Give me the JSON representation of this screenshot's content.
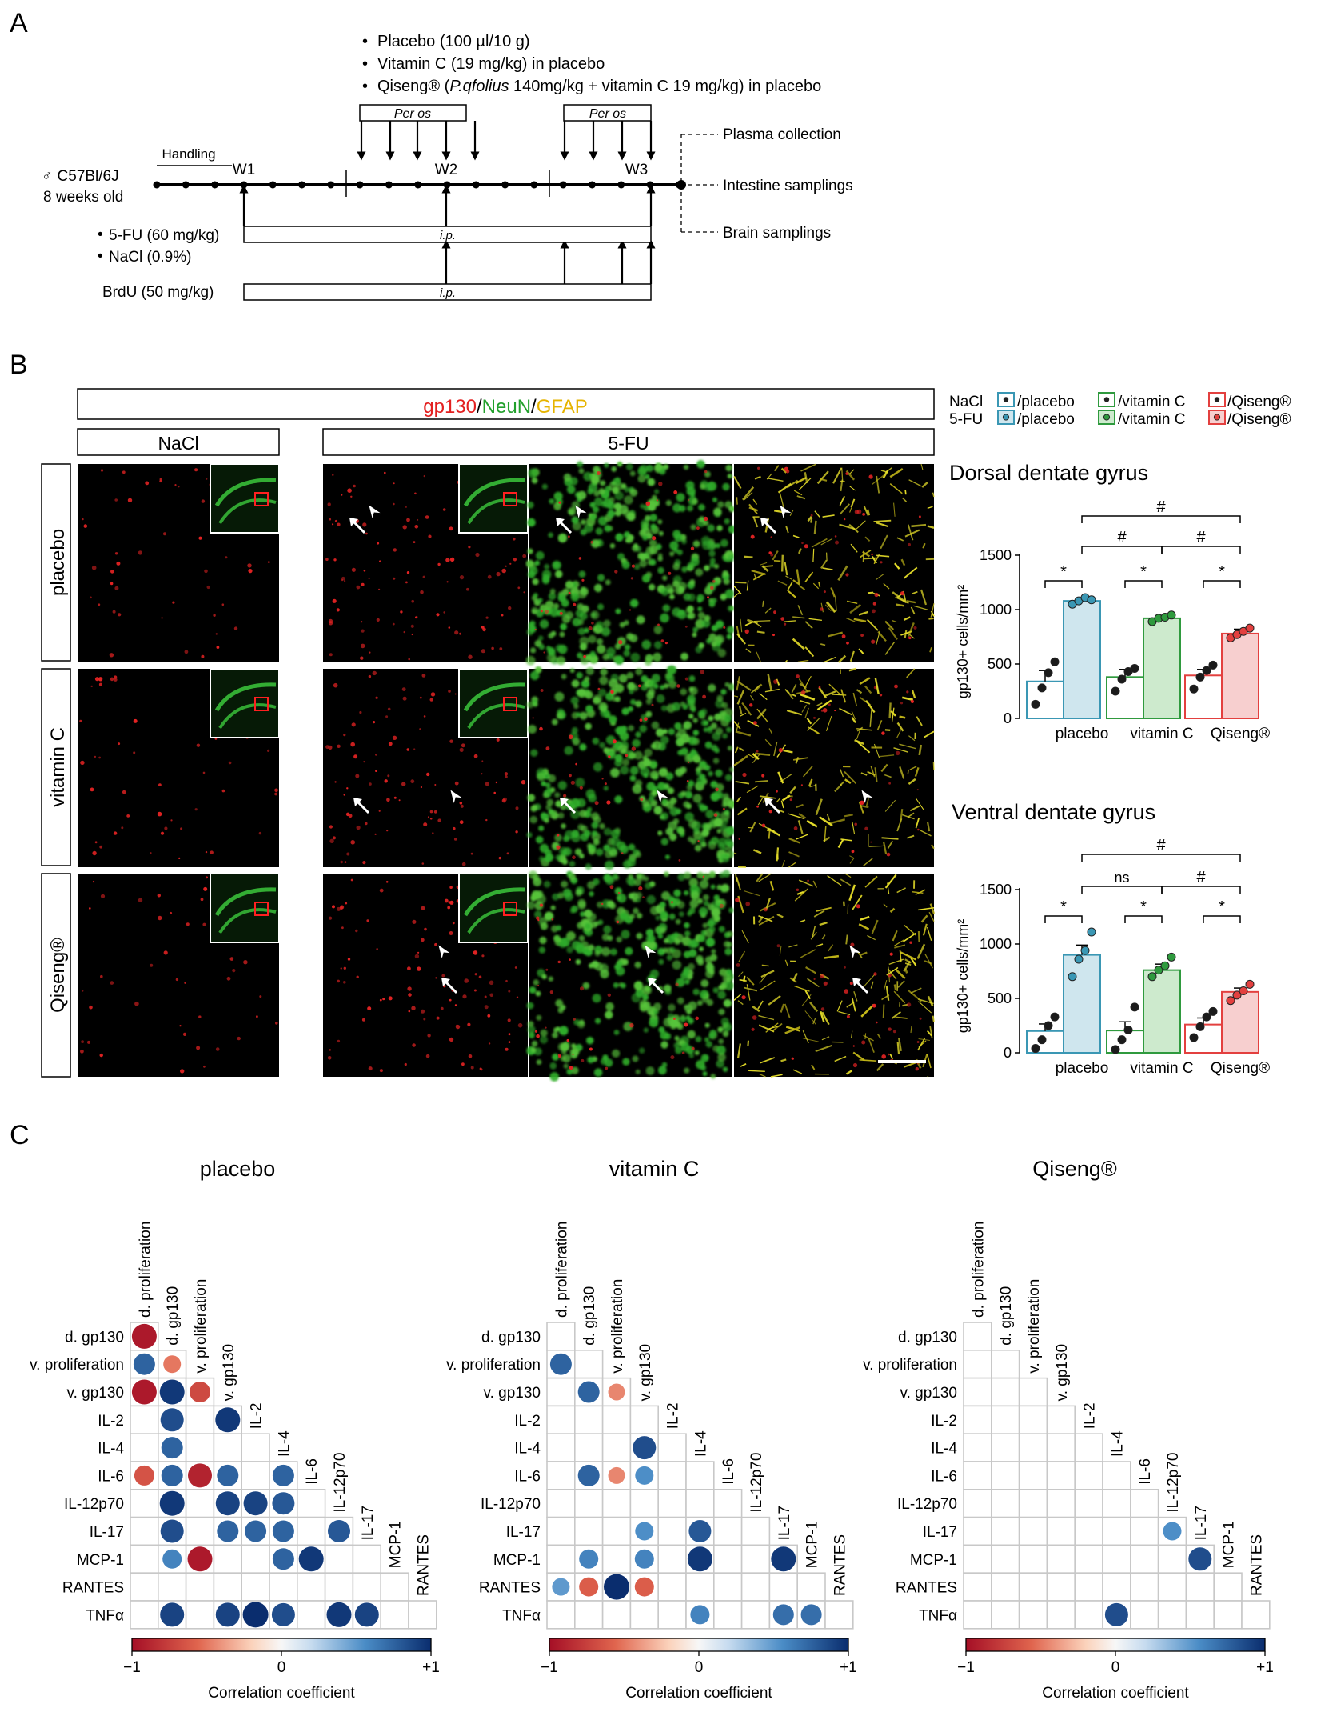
{
  "panels": {
    "a": "A",
    "b": "B",
    "c": "C"
  },
  "panelA": {
    "treatments": [
      "Placebo (100 µl/10 g)",
      "Vitamin C (19 mg/kg) in placebo"
    ],
    "qiseng_pre": "Qiseng® (",
    "qiseng_italic": "P.qfolius",
    "qiseng_post": " 140mg/kg + vitamin C 19 mg/kg) in placebo",
    "per_os": "Per os",
    "handling": "Handling",
    "weeks": [
      "W1",
      "W2",
      "W3"
    ],
    "animal_line1": "♂ C57Bl/6J",
    "animal_line2": "8 weeks old",
    "outputs": [
      "Plasma collection",
      "Intestine samplings",
      "Brain samplings"
    ],
    "fu_label": "5-FU (60 mg/kg)",
    "nacl_label": "NaCl (0.9%)",
    "brdu_label": "BrdU (50 mg/kg)",
    "ip": "i.p."
  },
  "panelB": {
    "stain_gp130": "gp130",
    "stain_neun": "NeuN",
    "stain_gfap": "GFAP",
    "slash": "/",
    "col_nacl": "NaCl",
    "col_5fu": "5-FU",
    "rows": [
      "placebo",
      "vitamin C",
      "Qiseng®"
    ],
    "legend": {
      "row_nacl": "NaCl",
      "row_5fu": "5-FU",
      "items": [
        "/placebo",
        "/vitamin C",
        "/Qiseng®"
      ]
    },
    "colors": {
      "placebo": "#3a97b4",
      "placebo_light": "#cfe6ee",
      "vitc": "#2f9a3e",
      "vitc_light": "#cdeacd",
      "qiseng": "#e3403f",
      "qiseng_light": "#f7cfcf",
      "dot_nacl": "#222222"
    }
  },
  "chart_data": [
    {
      "type": "bar",
      "title": "Dorsal dentate gyrus",
      "ylabel": "gp130+ cells/mm²",
      "ylim": [
        0,
        1500
      ],
      "yticks": [
        0,
        500,
        1000,
        1500
      ],
      "categories": [
        "placebo",
        "vitamin C",
        "Qiseng®"
      ],
      "series": [
        {
          "name": "NaCl",
          "values": [
            340,
            380,
            395
          ],
          "sem": [
            100,
            70,
            55
          ],
          "points": [
            [
              130,
              280,
              420,
              520
            ],
            [
              250,
              360,
              430,
              460
            ],
            [
              270,
              380,
              440,
              490
            ]
          ]
        },
        {
          "name": "5-FU",
          "values": [
            1080,
            920,
            780
          ],
          "sem": [
            25,
            25,
            40
          ],
          "points": [
            [
              1050,
              1080,
              1110,
              1090
            ],
            [
              890,
              920,
              930,
              950
            ],
            [
              740,
              770,
              800,
              830
            ]
          ]
        }
      ],
      "significance": [
        "*",
        "*",
        "*",
        "#",
        "#",
        "#"
      ]
    },
    {
      "type": "bar",
      "title": "Ventral dentate gyrus",
      "ylabel": "gp130+ cells/mm²",
      "ylim": [
        0,
        1500
      ],
      "yticks": [
        0,
        500,
        1000,
        1500
      ],
      "categories": [
        "placebo",
        "vitamin C",
        "Qiseng®"
      ],
      "series": [
        {
          "name": "NaCl",
          "values": [
            200,
            205,
            260
          ],
          "sem": [
            65,
            80,
            60
          ],
          "points": [
            [
              40,
              120,
              250,
              330
            ],
            [
              30,
              120,
              210,
              420
            ],
            [
              140,
              240,
              330,
              380
            ]
          ]
        },
        {
          "name": "5-FU",
          "values": [
            900,
            760,
            560
          ],
          "sem": [
            90,
            55,
            35
          ],
          "points": [
            [
              700,
              860,
              940,
              1110
            ],
            [
              700,
              760,
              800,
              880
            ],
            [
              480,
              530,
              570,
              630
            ]
          ]
        }
      ],
      "significance": [
        "*",
        "*",
        "*",
        "ns",
        "#",
        "#"
      ]
    },
    {
      "type": "heatmap",
      "title": "placebo",
      "colorbar_label": "Correlation coefficient",
      "colorbar_ticks": [
        "−1",
        "0",
        "+1"
      ],
      "variables": [
        "d. proliferation",
        "d. gp130",
        "v. proliferation",
        "v. gp130",
        "IL-2",
        "IL-4",
        "IL-6",
        "IL-12p70",
        "IL-17",
        "MCP-1",
        "RANTES",
        "TNFα"
      ],
      "cells": [
        [
          1,
          0,
          -0.95
        ],
        [
          2,
          0,
          0.75
        ],
        [
          2,
          1,
          -0.5
        ],
        [
          3,
          0,
          -0.95
        ],
        [
          3,
          1,
          0.95
        ],
        [
          3,
          2,
          -0.7
        ],
        [
          4,
          1,
          0.85
        ],
        [
          4,
          3,
          0.95
        ],
        [
          5,
          1,
          0.75
        ],
        [
          6,
          0,
          -0.65
        ],
        [
          6,
          1,
          0.75
        ],
        [
          6,
          2,
          -0.9
        ],
        [
          6,
          3,
          0.75
        ],
        [
          6,
          5,
          0.75
        ],
        [
          7,
          1,
          0.95
        ],
        [
          7,
          3,
          0.9
        ],
        [
          7,
          4,
          0.9
        ],
        [
          7,
          5,
          0.8
        ],
        [
          8,
          1,
          0.85
        ],
        [
          8,
          3,
          0.75
        ],
        [
          8,
          4,
          0.75
        ],
        [
          8,
          5,
          0.75
        ],
        [
          8,
          7,
          0.8
        ],
        [
          9,
          1,
          0.6
        ],
        [
          9,
          2,
          -0.95
        ],
        [
          9,
          5,
          0.75
        ],
        [
          9,
          6,
          0.95
        ],
        [
          11,
          1,
          0.9
        ],
        [
          11,
          3,
          0.9
        ],
        [
          11,
          4,
          1.0
        ],
        [
          11,
          5,
          0.85
        ],
        [
          11,
          7,
          0.95
        ],
        [
          11,
          8,
          0.9
        ]
      ]
    },
    {
      "type": "heatmap",
      "title": "vitamin C",
      "colorbar_label": "Correlation coefficient",
      "colorbar_ticks": [
        "−1",
        "0",
        "+1"
      ],
      "variables": [
        "d. proliferation",
        "d. gp130",
        "v. proliferation",
        "v. gp130",
        "IL-2",
        "IL-4",
        "IL-6",
        "IL-12p70",
        "IL-17",
        "MCP-1",
        "RANTES",
        "TNFα"
      ],
      "cells": [
        [
          2,
          0,
          0.75
        ],
        [
          3,
          1,
          0.75
        ],
        [
          3,
          2,
          -0.45
        ],
        [
          5,
          3,
          0.85
        ],
        [
          6,
          1,
          0.75
        ],
        [
          6,
          2,
          -0.45
        ],
        [
          6,
          3,
          0.55
        ],
        [
          8,
          3,
          0.55
        ],
        [
          8,
          5,
          0.8
        ],
        [
          9,
          1,
          0.6
        ],
        [
          9,
          3,
          0.6
        ],
        [
          9,
          5,
          0.95
        ],
        [
          9,
          8,
          0.95
        ],
        [
          10,
          0,
          0.5
        ],
        [
          10,
          1,
          -0.6
        ],
        [
          10,
          2,
          1.0
        ],
        [
          10,
          3,
          -0.6
        ],
        [
          11,
          5,
          0.6
        ],
        [
          11,
          8,
          0.7
        ],
        [
          11,
          9,
          0.7
        ]
      ]
    },
    {
      "type": "heatmap",
      "title": "Qiseng®",
      "colorbar_label": "Correlation coefficient",
      "colorbar_ticks": [
        "−1",
        "0",
        "+1"
      ],
      "variables": [
        "d. proliferation",
        "d. gp130",
        "v. proliferation",
        "v. gp130",
        "IL-2",
        "IL-4",
        "IL-6",
        "IL-12p70",
        "IL-17",
        "MCP-1",
        "RANTES",
        "TNFα"
      ],
      "cells": [
        [
          8,
          7,
          0.55
        ],
        [
          9,
          8,
          0.85
        ],
        [
          11,
          5,
          0.85
        ]
      ]
    }
  ]
}
